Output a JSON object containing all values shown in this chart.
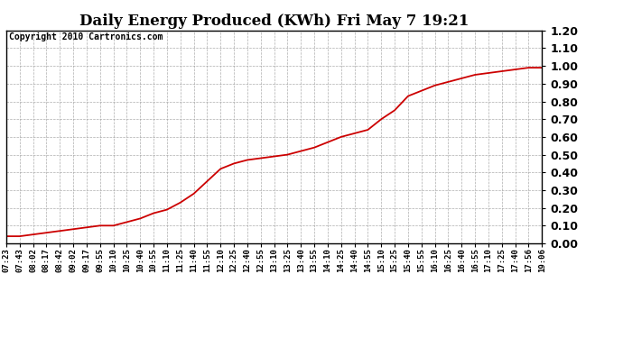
{
  "title": "Daily Energy Produced (KWh) Fri May 7 19:21",
  "copyright_text": "Copyright 2010 Cartronics.com",
  "line_color": "#cc0000",
  "background_color": "#ffffff",
  "plot_bg_color": "#ffffff",
  "grid_color": "#999999",
  "ylim": [
    0.0,
    1.2
  ],
  "yticks": [
    0.0,
    0.1,
    0.2,
    0.3,
    0.4,
    0.5,
    0.6,
    0.7,
    0.8,
    0.9,
    1.0,
    1.1,
    1.2
  ],
  "xtick_labels": [
    "07:23",
    "07:43",
    "08:02",
    "08:17",
    "08:42",
    "09:02",
    "09:17",
    "09:55",
    "10:10",
    "10:25",
    "10:40",
    "10:55",
    "11:10",
    "11:25",
    "11:40",
    "11:55",
    "12:10",
    "12:25",
    "12:40",
    "12:55",
    "13:10",
    "13:25",
    "13:40",
    "13:55",
    "14:10",
    "14:25",
    "14:40",
    "14:55",
    "15:10",
    "15:25",
    "15:40",
    "15:55",
    "16:10",
    "16:25",
    "16:40",
    "16:55",
    "17:10",
    "17:25",
    "17:40",
    "17:56",
    "19:06"
  ],
  "x_values": [
    0,
    1,
    2,
    3,
    4,
    5,
    6,
    7,
    8,
    9,
    10,
    11,
    12,
    13,
    14,
    15,
    16,
    17,
    18,
    19,
    20,
    21,
    22,
    23,
    24,
    25,
    26,
    27,
    28,
    29,
    30,
    31,
    32,
    33,
    34,
    35,
    36,
    37,
    38,
    39,
    40
  ],
  "y_values": [
    0.04,
    0.04,
    0.05,
    0.06,
    0.07,
    0.08,
    0.09,
    0.1,
    0.1,
    0.12,
    0.14,
    0.17,
    0.19,
    0.23,
    0.28,
    0.35,
    0.42,
    0.45,
    0.47,
    0.48,
    0.49,
    0.5,
    0.52,
    0.54,
    0.57,
    0.6,
    0.62,
    0.64,
    0.7,
    0.75,
    0.83,
    0.86,
    0.89,
    0.91,
    0.93,
    0.95,
    0.96,
    0.97,
    0.98,
    0.99,
    0.99
  ],
  "title_fontsize": 12,
  "tick_fontsize": 6.5,
  "copyright_fontsize": 7,
  "ytick_fontsize": 9,
  "line_width": 1.3
}
